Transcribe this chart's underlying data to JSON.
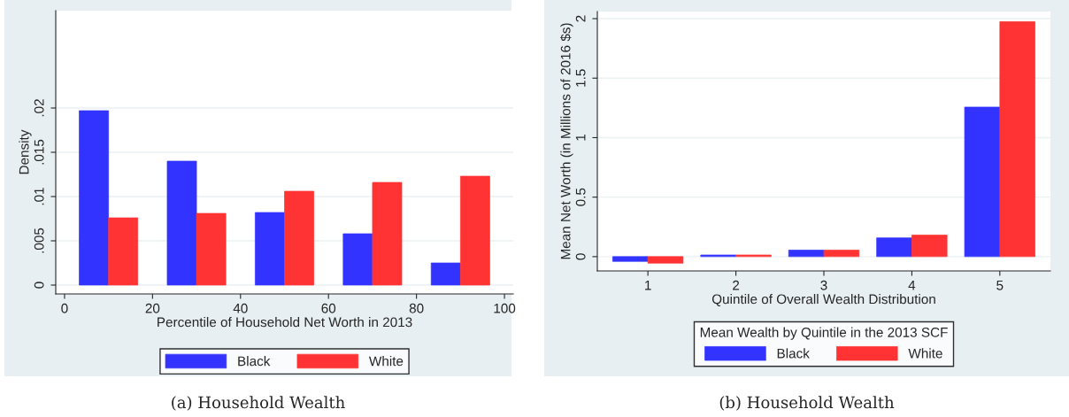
{
  "chart_data": [
    {
      "type": "bar",
      "xlabel": "Percentile of Household Net Worth in 2013",
      "ylabel": "Density",
      "series": [
        {
          "name": "Black",
          "color": "#3333ff",
          "x": [
            6.67,
            26.67,
            46.67,
            66.67,
            86.67
          ],
          "values": [
            0.0197,
            0.014,
            0.0082,
            0.0058,
            0.0025
          ]
        },
        {
          "name": "White",
          "color": "#ff3333",
          "x": [
            13.33,
            33.33,
            53.33,
            73.33,
            93.33
          ],
          "values": [
            0.0076,
            0.0081,
            0.0106,
            0.0116,
            0.0123
          ]
        }
      ],
      "xlim": [
        -2,
        102
      ],
      "xticks": [
        0,
        20,
        40,
        60,
        80,
        100
      ],
      "ylim": [
        -0.001,
        0.031
      ],
      "yticks": [
        0,
        {
          "value": 0.005,
          "label": ".005"
        },
        {
          "value": 0.01,
          "label": ".01"
        },
        {
          "value": 0.015,
          "label": ".015"
        },
        {
          "value": 0.02,
          "label": ".02"
        }
      ],
      "grid": "y",
      "legend": "bottom",
      "annotations": [
        "(a) Household Wealth"
      ]
    },
    {
      "type": "bar",
      "xlabel": "Quintile of Overall Wealth Distribution",
      "ylabel": "Mean Net Worth (in Millions of 2016 $s)",
      "legend_title": "Mean Wealth by Quintile in the 2013 SCF",
      "categories": [
        "1",
        "2",
        "3",
        "4",
        "5"
      ],
      "series": [
        {
          "name": "Black",
          "color": "#3333ff",
          "values": [
            -0.04,
            0.014,
            0.055,
            0.158,
            1.257
          ]
        },
        {
          "name": "White",
          "color": "#ff3333",
          "values": [
            -0.055,
            0.014,
            0.055,
            0.181,
            1.974
          ]
        }
      ],
      "ylim": [
        -0.12,
        2.06
      ],
      "yticks": [
        0,
        0.5,
        1,
        1.5,
        2
      ],
      "grid": "y",
      "legend": "bottom",
      "annotations": [
        "(b) Household Wealth"
      ]
    }
  ]
}
